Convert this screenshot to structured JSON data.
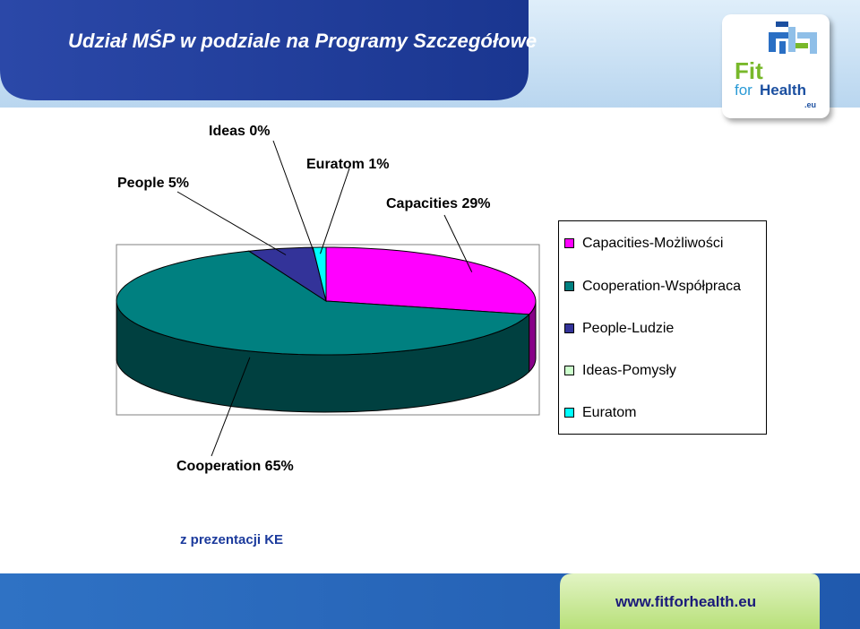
{
  "header": {
    "title": "Udział MŚP w podziale na Programy Szczegółowe",
    "band_color": "#1f3c9b",
    "light_band_color": "#c7dff2"
  },
  "logo": {
    "fit": "Fit",
    "for": "for",
    "health": "Health",
    "eu": ".eu",
    "fit_color": "#78b82a",
    "health_color": "#1b4fa0"
  },
  "chart_data": {
    "type": "pie",
    "title": "",
    "three_d": true,
    "slices": [
      {
        "legend": "Capacities-Możliwości",
        "label": "Capacities 29%",
        "value": 29,
        "color": "#ff00ff",
        "side_color": "#880088"
      },
      {
        "legend": "Cooperation-Współpraca",
        "label": "Cooperation 65%",
        "value": 65,
        "color": "#008080",
        "side_color": "#004040"
      },
      {
        "legend": "People-Ludzie",
        "label": "People 5%",
        "value": 5,
        "color": "#333399",
        "side_color": "#1a1a4d"
      },
      {
        "legend": "Ideas-Pomysły",
        "label": "Ideas 0%",
        "value": 0,
        "color": "#ccffcc",
        "side_color": "#668066"
      },
      {
        "legend": "Euratom",
        "label": "Euratom 1%",
        "value": 1,
        "color": "#00ffff",
        "side_color": "#008080"
      }
    ],
    "legend_position": "right"
  },
  "source_note": "z prezentacji KE",
  "footer": {
    "url": "www.fitforhealth.eu",
    "band_color": "#2563b8"
  }
}
